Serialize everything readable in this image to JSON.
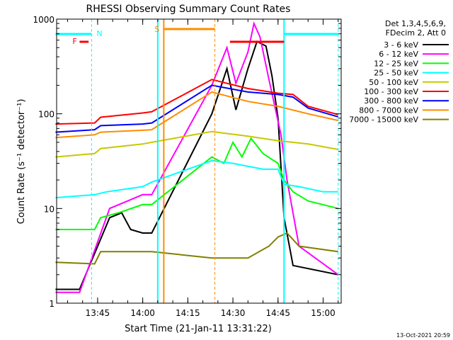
{
  "chart_data": {
    "type": "line",
    "title": "RHESSI Observing Summary Count Rates",
    "xlabel": "Start Time (21-Jan-11 13:31:22)",
    "ylabel": "Count Rate (s⁻¹ detector⁻¹)",
    "x_range": [
      "13:31:22",
      "15:06:00"
    ],
    "ylim": [
      1,
      1000
    ],
    "y_scale": "log",
    "x_ticks": [
      "13:45",
      "14:00",
      "14:15",
      "14:30",
      "14:45",
      "15:00"
    ],
    "y_ticks": [
      "1",
      "10",
      "100",
      "1000"
    ],
    "legend_header": [
      "Det 1,3,4,5,6,9,",
      "FDecim 2, Att 0"
    ],
    "legend_position": "right",
    "footer_date": "13-Oct-2021 20:59",
    "series": [
      {
        "name": "3 - 6 keV",
        "color": "#000000",
        "points": [
          [
            "13:31",
            1.4
          ],
          [
            "13:39",
            1.4
          ],
          [
            "13:49",
            8
          ],
          [
            "13:53",
            9
          ],
          [
            "13:56",
            6
          ],
          [
            "14:00",
            5.5
          ],
          [
            "14:03",
            5.5
          ],
          [
            "14:23",
            100
          ],
          [
            "14:28",
            300
          ],
          [
            "14:31",
            110
          ],
          [
            "14:35",
            300
          ],
          [
            "14:38",
            580
          ],
          [
            "14:41",
            520
          ],
          [
            "14:43",
            250
          ],
          [
            "14:45",
            90
          ],
          [
            "14:47",
            8
          ],
          [
            "14:50",
            2.5
          ],
          [
            "15:05",
            2
          ]
        ]
      },
      {
        "name": "6 - 12 keV",
        "color": "#ff00ff",
        "points": [
          [
            "13:31",
            1.3
          ],
          [
            "13:39",
            1.3
          ],
          [
            "13:49",
            10
          ],
          [
            "13:55",
            12
          ],
          [
            "14:00",
            14
          ],
          [
            "14:03",
            14
          ],
          [
            "14:23",
            200
          ],
          [
            "14:28",
            500
          ],
          [
            "14:31",
            210
          ],
          [
            "14:35",
            450
          ],
          [
            "14:37",
            900
          ],
          [
            "14:39",
            650
          ],
          [
            "14:42",
            230
          ],
          [
            "14:46",
            60
          ],
          [
            "14:48",
            20
          ],
          [
            "14:52",
            4
          ],
          [
            "15:05",
            2
          ]
        ]
      },
      {
        "name": "12 - 25 keV",
        "color": "#00ff00",
        "points": [
          [
            "13:31",
            6
          ],
          [
            "13:44",
            6
          ],
          [
            "13:46",
            8
          ],
          [
            "13:52",
            9
          ],
          [
            "14:00",
            11
          ],
          [
            "14:03",
            11
          ],
          [
            "14:23",
            35
          ],
          [
            "14:27",
            30
          ],
          [
            "14:30",
            50
          ],
          [
            "14:33",
            35
          ],
          [
            "14:36",
            55
          ],
          [
            "14:40",
            38
          ],
          [
            "14:45",
            30
          ],
          [
            "14:47",
            20
          ],
          [
            "14:50",
            15
          ],
          [
            "14:55",
            12
          ],
          [
            "15:05",
            10
          ]
        ]
      },
      {
        "name": "25 - 50 keV",
        "color": "#00ffff",
        "points": [
          [
            "13:31",
            13
          ],
          [
            "13:44",
            14
          ],
          [
            "13:48",
            15
          ],
          [
            "14:00",
            17
          ],
          [
            "14:03",
            19
          ],
          [
            "14:23",
            32
          ],
          [
            "14:30",
            30
          ],
          [
            "14:40",
            26
          ],
          [
            "14:45",
            26
          ],
          [
            "14:47",
            18
          ],
          [
            "14:52",
            17
          ],
          [
            "15:00",
            15
          ],
          [
            "15:05",
            15
          ]
        ]
      },
      {
        "name": "50 - 100 keV",
        "color": "#c8c800",
        "points": [
          [
            "13:31",
            35
          ],
          [
            "13:44",
            38
          ],
          [
            "13:46",
            43
          ],
          [
            "14:00",
            48
          ],
          [
            "14:03",
            50
          ],
          [
            "14:23",
            65
          ],
          [
            "14:35",
            58
          ],
          [
            "14:45",
            52
          ],
          [
            "14:55",
            48
          ],
          [
            "15:05",
            42
          ]
        ]
      },
      {
        "name": "100 - 300 keV",
        "color": "#ff0000",
        "points": [
          [
            "13:31",
            78
          ],
          [
            "13:44",
            80
          ],
          [
            "13:46",
            92
          ],
          [
            "14:00",
            102
          ],
          [
            "14:03",
            105
          ],
          [
            "14:23",
            230
          ],
          [
            "14:35",
            185
          ],
          [
            "14:45",
            165
          ],
          [
            "14:50",
            160
          ],
          [
            "14:55",
            120
          ],
          [
            "15:05",
            98
          ]
        ]
      },
      {
        "name": "300 - 800 keV",
        "color": "#0000ff",
        "points": [
          [
            "13:31",
            64
          ],
          [
            "13:44",
            68
          ],
          [
            "13:46",
            75
          ],
          [
            "14:00",
            78
          ],
          [
            "14:03",
            80
          ],
          [
            "14:23",
            200
          ],
          [
            "14:35",
            170
          ],
          [
            "14:45",
            160
          ],
          [
            "14:50",
            150
          ],
          [
            "14:55",
            115
          ],
          [
            "15:05",
            93
          ]
        ]
      },
      {
        "name": "800 - 7000 keV",
        "color": "#ff8c00",
        "points": [
          [
            "13:31",
            56
          ],
          [
            "13:44",
            60
          ],
          [
            "13:46",
            64
          ],
          [
            "14:00",
            67
          ],
          [
            "14:03",
            68
          ],
          [
            "14:23",
            170
          ],
          [
            "14:35",
            135
          ],
          [
            "14:45",
            120
          ],
          [
            "14:55",
            100
          ],
          [
            "15:05",
            85
          ]
        ]
      },
      {
        "name": "7000 - 15000 keV",
        "color": "#808000",
        "points": [
          [
            "13:31",
            2.7
          ],
          [
            "13:44",
            2.6
          ],
          [
            "13:46",
            3.5
          ],
          [
            "14:00",
            3.5
          ],
          [
            "14:03",
            3.5
          ],
          [
            "14:23",
            3
          ],
          [
            "14:35",
            3
          ],
          [
            "14:42",
            4
          ],
          [
            "14:45",
            5
          ],
          [
            "14:48",
            5.5
          ],
          [
            "14:52",
            4
          ],
          [
            "15:05",
            3.5
          ]
        ]
      }
    ],
    "annotations": {
      "night_bars": [
        {
          "from": "13:31",
          "to": "13:43"
        },
        {
          "from": "14:47",
          "to": "15:05"
        }
      ],
      "night_label": "N",
      "flare_bars": [
        {
          "from": "13:39",
          "to": "13:42"
        },
        {
          "from": "14:29",
          "to": "14:47"
        }
      ],
      "flare_label": "F",
      "saa_bar": {
        "from": "14:07",
        "to": "14:24"
      },
      "saa_label": "S",
      "lines": [
        {
          "time": "13:43",
          "color": "#00ffff",
          "style": "dashed"
        },
        {
          "time": "14:05",
          "color": "#00ffff",
          "style": "solid"
        },
        {
          "time": "14:07",
          "color": "#ff8c00",
          "style": "solid"
        },
        {
          "time": "14:24",
          "color": "#ff8c00",
          "style": "dashed"
        },
        {
          "time": "14:47",
          "color": "#00ffff",
          "style": "solid"
        },
        {
          "time": "15:05",
          "color": "#00ffff",
          "style": "dashed"
        }
      ]
    }
  }
}
